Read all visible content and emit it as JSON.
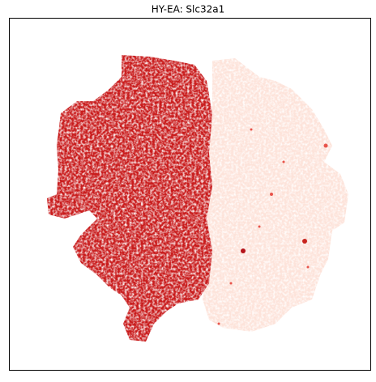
{
  "chart_data": {
    "type": "scatter",
    "title": "HY-EA: Slc32a1"
  }
}
